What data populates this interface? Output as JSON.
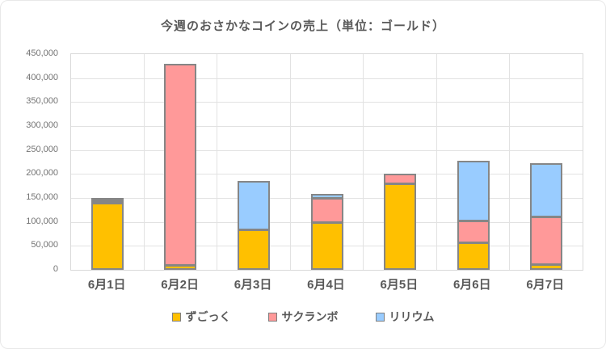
{
  "page": {
    "title": "今週のおさかなコインの売上（単位：ゴールド）"
  },
  "chart_data": {
    "type": "bar",
    "stacked": true,
    "title": "今週のおさかなコインの売上（単位：ゴールド）",
    "categories": [
      "6月1日",
      "6月2日",
      "6月3日",
      "6月4日",
      "6月5日",
      "6月6日",
      "6月7日"
    ],
    "series": [
      {
        "name": "ずごっく",
        "color": "#FFC000",
        "values": [
          140000,
          10000,
          85000,
          100000,
          180000,
          58000,
          12000
        ]
      },
      {
        "name": "サクランボ",
        "color": "#FF9999",
        "values": [
          5000,
          420000,
          0,
          50000,
          20000,
          45000,
          100000
        ]
      },
      {
        "name": "リリウム",
        "color": "#99CCFF",
        "values": [
          3000,
          0,
          100000,
          8000,
          0,
          125000,
          110000
        ]
      }
    ],
    "totals": [
      148000,
      430000,
      185000,
      158000,
      200000,
      228000,
      222000
    ],
    "ylim": [
      0,
      450000
    ],
    "ytick_step": 50000,
    "ytick_labels": [
      "450,000",
      "400,000",
      "350,000",
      "300,000",
      "250,000",
      "200,000",
      "150,000",
      "100,000",
      "50,000",
      "0"
    ],
    "grid": true,
    "legend_position": "bottom",
    "colors": {
      "bar_border": "#868686",
      "gridline": "#e2e2e2",
      "axis_text": "#737373",
      "label_text": "#595959"
    }
  }
}
